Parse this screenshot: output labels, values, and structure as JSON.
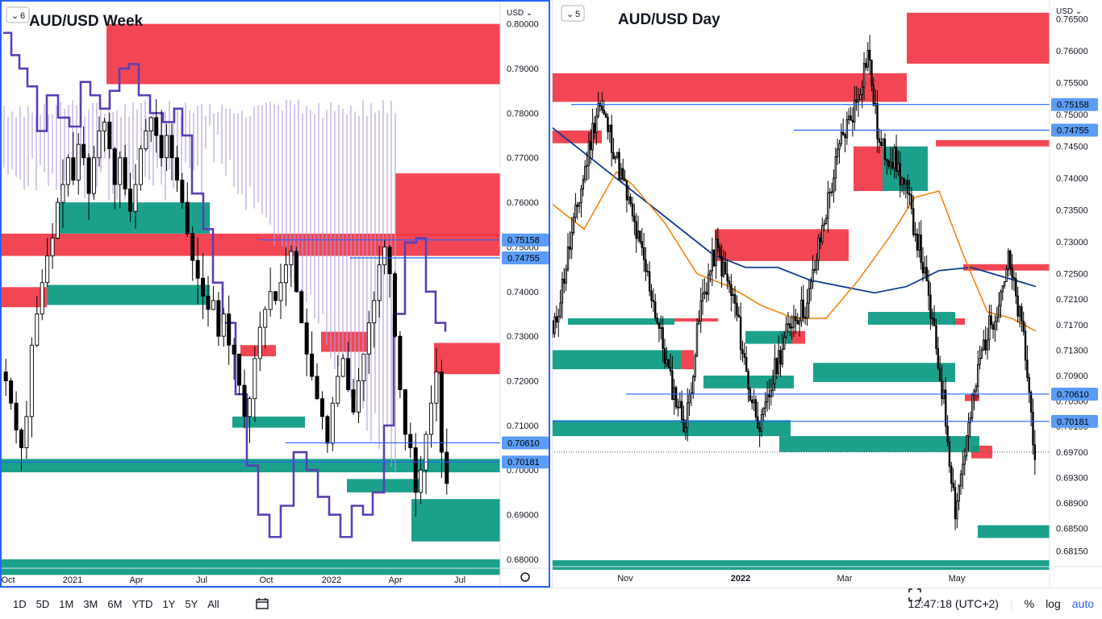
{
  "left": {
    "title": "AUD/USD Week",
    "badge": "6",
    "currency": "USD",
    "y_ticks": [
      "0.80000",
      "0.79000",
      "0.78000",
      "0.77000",
      "0.76000",
      "0.75000",
      "0.74000",
      "0.73000",
      "0.72000",
      "0.71000",
      "0.70000",
      "0.69000",
      "0.68000"
    ],
    "x_ticks": [
      "Oct",
      "2021",
      "Apr",
      "Jul",
      "Oct",
      "2022",
      "Apr",
      "Jul"
    ],
    "price_labels": [
      "0.75158",
      "0.74755",
      "0.70610",
      "0.70181"
    ]
  },
  "right": {
    "title": "AUD/USD Day",
    "badge": "5",
    "currency": "USD",
    "y_ticks": [
      "0.76500",
      "0.76000",
      "0.75500",
      "0.75000",
      "0.74500",
      "0.74000",
      "0.73500",
      "0.73000",
      "0.72500",
      "0.72100",
      "0.71700",
      "0.71300",
      "0.70900",
      "0.70500",
      "0.70100",
      "0.69700",
      "0.69300",
      "0.68900",
      "0.68500",
      "0.68150"
    ],
    "x_ticks": [
      "Nov",
      "2022",
      "Mar",
      "May"
    ],
    "price_labels": [
      "0.75158",
      "0.74755",
      "0.70610",
      "0.70181"
    ]
  },
  "toolbar": {
    "ranges": [
      "1D",
      "5D",
      "1M",
      "3M",
      "6M",
      "YTD",
      "1Y",
      "5Y",
      "All"
    ],
    "time": "12:47:18 (UTC+2)",
    "percent": "%",
    "log": "log",
    "auto": "auto"
  },
  "colors": {
    "up": "#ffffff",
    "down": "#000000",
    "supply": "#f23645",
    "demand": "#089981",
    "ichimoku": "#b39ddb",
    "line": "#5b3fb5",
    "ma_fast": "#f57c00",
    "ma_slow": "#0d3d91",
    "level": "#2962ff"
  },
  "chart_data": [
    {
      "type": "candlestick",
      "title": "AUD/USD Week",
      "ylim": [
        0.678,
        0.805
      ],
      "levels": [
        0.75158,
        0.74755,
        0.7061,
        0.70181
      ],
      "x": [
        "Oct",
        "2021",
        "Apr",
        "Jul",
        "Oct",
        "2022",
        "Apr",
        "Jul"
      ],
      "closes": [
        0.72,
        0.715,
        0.709,
        0.705,
        0.712,
        0.728,
        0.735,
        0.742,
        0.748,
        0.752,
        0.76,
        0.764,
        0.77,
        0.765,
        0.773,
        0.77,
        0.762,
        0.77,
        0.776,
        0.778,
        0.772,
        0.764,
        0.77,
        0.763,
        0.758,
        0.764,
        0.772,
        0.776,
        0.779,
        0.775,
        0.77,
        0.775,
        0.77,
        0.765,
        0.76,
        0.753,
        0.747,
        0.743,
        0.739,
        0.736,
        0.738,
        0.73,
        0.735,
        0.728,
        0.726,
        0.719,
        0.712,
        0.716,
        0.725,
        0.732,
        0.736,
        0.74,
        0.738,
        0.742,
        0.746,
        0.749,
        0.74,
        0.733,
        0.726,
        0.721,
        0.716,
        0.712,
        0.706,
        0.715,
        0.721,
        0.725,
        0.718,
        0.713,
        0.72,
        0.726,
        0.733,
        0.738,
        0.746,
        0.75,
        0.744,
        0.73,
        0.718,
        0.708,
        0.705,
        0.695,
        0.7,
        0.708,
        0.715,
        0.722,
        0.704,
        0.697
      ]
    },
    {
      "type": "candlestick",
      "title": "AUD/USD Day",
      "ylim": [
        0.679,
        0.768
      ],
      "levels": [
        0.75158,
        0.74755,
        0.7061,
        0.70181
      ],
      "x": [
        "Nov",
        "2022",
        "Mar",
        "May"
      ]
    }
  ]
}
